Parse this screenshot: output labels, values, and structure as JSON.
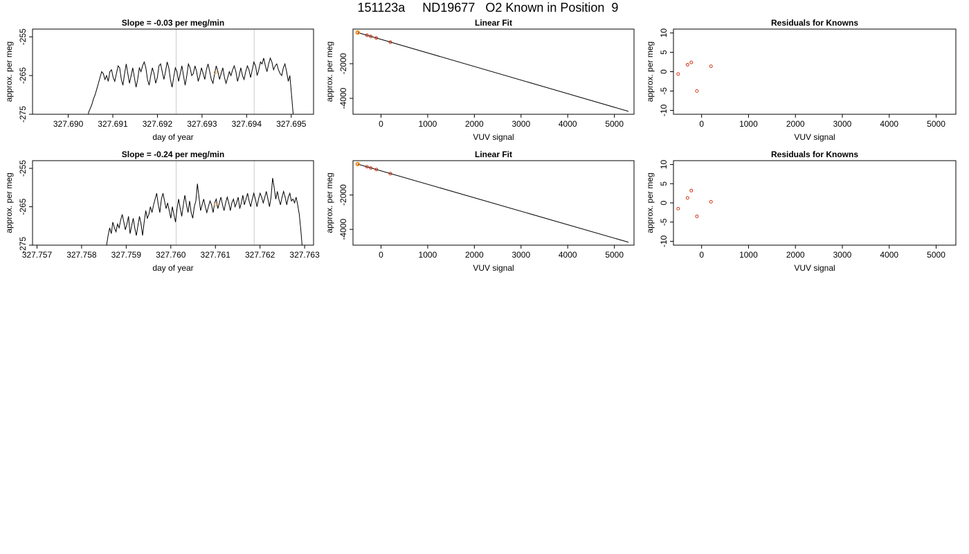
{
  "page": {
    "title": "151123a     ND19677   O2 Known in Position  9"
  },
  "chart_data": [
    {
      "type": "line",
      "title": "Slope =  -0.03  per meg/min",
      "xlabel": "day of year",
      "ylabel": "approx. per meg",
      "xlim": [
        327.6892,
        327.6955
      ],
      "ylim": [
        -275,
        -253
      ],
      "xticks": [
        "327.690",
        "327.691",
        "327.692",
        "327.693",
        "327.694",
        "327.695"
      ],
      "xtick_values": [
        327.69,
        327.691,
        327.692,
        327.693,
        327.694,
        327.695
      ],
      "yticks": [
        "-255",
        "-265",
        "-275"
      ],
      "ytick_values": [
        -255,
        -265,
        -275
      ],
      "vlines": [
        327.69242,
        327.69417
      ],
      "marker": {
        "x": 327.6933,
        "y": -264.2
      },
      "series": [
        {
          "x_start": 327.69042,
          "x_end": 327.69508,
          "values": [
            -279,
            -274.5,
            -273.5,
            -272.5,
            -271,
            -270,
            -268.5,
            -267,
            -265.5,
            -264,
            -264.5,
            -266,
            -265,
            -266.5,
            -264,
            -263.5,
            -265.5,
            -266.5,
            -264.5,
            -262.5,
            -263,
            -266,
            -267.5,
            -264.5,
            -262,
            -264.5,
            -267,
            -265,
            -263,
            -265.5,
            -268,
            -266,
            -263,
            -264,
            -262.5,
            -261.5,
            -263,
            -266,
            -267.5,
            -265,
            -263,
            -264.5,
            -267,
            -265.5,
            -262.5,
            -262,
            -264,
            -266,
            -264,
            -261.5,
            -263,
            -266,
            -268,
            -265.5,
            -263,
            -264,
            -266.5,
            -264.5,
            -262.5,
            -265,
            -267.5,
            -265,
            -262,
            -263,
            -265,
            -264.5,
            -262.5,
            -264,
            -266.5,
            -265,
            -263,
            -264.5,
            -266,
            -263.5,
            -262,
            -264,
            -266,
            -267,
            -264.5,
            -262.5,
            -264,
            -266,
            -264.5,
            -263,
            -265.5,
            -267,
            -265.5,
            -264,
            -265,
            -263.5,
            -262.5,
            -264,
            -266.5,
            -265,
            -263,
            -265,
            -266,
            -264,
            -262.5,
            -263.5,
            -265.5,
            -263.5,
            -261.5,
            -262.5,
            -265,
            -263.5,
            -261.5,
            -262,
            -260.5,
            -262.5,
            -264,
            -262,
            -260.5,
            -261.5,
            -263.5,
            -262.5,
            -262,
            -263.5,
            -264.5,
            -265,
            -263,
            -262,
            -264,
            -266.5,
            -265,
            -270,
            -275,
            -281
          ]
        }
      ]
    },
    {
      "type": "scatter",
      "title": "Linear Fit",
      "xlabel": "VUV signal",
      "ylabel": "approx. per meg",
      "xlim": [
        -600,
        5420
      ],
      "ylim": [
        -4920,
        0
      ],
      "xticks": [
        "0",
        "1000",
        "2000",
        "3000",
        "4000",
        "5000"
      ],
      "xtick_values": [
        0,
        1000,
        2000,
        3000,
        4000,
        5000
      ],
      "yticks": [
        "-2000",
        "-4000"
      ],
      "ytick_values": [
        -2000,
        -4000
      ],
      "fit_line": {
        "x": [
          -500,
          5300
        ],
        "y": [
          -200,
          -4750
        ]
      },
      "points": {
        "x": [
          -500,
          -300,
          -220,
          -100,
          200
        ],
        "y": [
          -200,
          -355,
          -425,
          -515,
          -755
        ]
      },
      "highlight": {
        "x": -500,
        "y": -200
      }
    },
    {
      "type": "scatter",
      "title": "Residuals for Knowns",
      "xlabel": "VUV signal",
      "ylabel": "approx. per meg",
      "xlim": [
        -600,
        5420
      ],
      "ylim": [
        -11,
        11
      ],
      "xticks": [
        "0",
        "1000",
        "2000",
        "3000",
        "4000",
        "5000"
      ],
      "xtick_values": [
        0,
        1000,
        2000,
        3000,
        4000,
        5000
      ],
      "yticks": [
        "10",
        "5",
        "0",
        "-5",
        "-10"
      ],
      "ytick_values": [
        10,
        5,
        0,
        -5,
        -10
      ],
      "points": {
        "x": [
          -500,
          -300,
          -220,
          -100,
          200
        ],
        "y": [
          -0.6,
          1.8,
          2.4,
          -5.0,
          1.4
        ]
      }
    },
    {
      "type": "line",
      "title": "Slope =  -0.24  per meg/min",
      "xlabel": "day of year",
      "ylabel": "approx. per meg",
      "xlim": [
        327.7569,
        327.7632
      ],
      "ylim": [
        -275,
        -253
      ],
      "xticks": [
        "327.757",
        "327.758",
        "327.759",
        "327.760",
        "327.761",
        "327.762",
        "327.763"
      ],
      "xtick_values": [
        327.757,
        327.758,
        327.759,
        327.76,
        327.761,
        327.762,
        327.763
      ],
      "yticks": [
        "-255",
        "-265",
        "-275"
      ],
      "ytick_values": [
        -255,
        -265,
        -275
      ],
      "vlines": [
        327.76012,
        327.76187
      ],
      "marker": {
        "x": 327.761,
        "y": -264.4
      },
      "series": [
        {
          "x_start": 327.75856,
          "x_end": 327.76295,
          "values": [
            -275,
            -272.5,
            -270.5,
            -272,
            -269,
            -270.5,
            -271.5,
            -269.5,
            -270.5,
            -268.5,
            -267,
            -269,
            -271,
            -269.5,
            -267.5,
            -272,
            -270,
            -268,
            -270.5,
            -272.5,
            -270,
            -267.5,
            -269.5,
            -272.5,
            -269,
            -266,
            -268,
            -267,
            -265,
            -266.5,
            -264.5,
            -263,
            -261.5,
            -264.5,
            -266.5,
            -263,
            -261.5,
            -263.5,
            -265.5,
            -264,
            -266,
            -268,
            -265,
            -267,
            -269,
            -265.5,
            -263,
            -265.5,
            -267.5,
            -264.5,
            -262,
            -264.5,
            -266.5,
            -263.5,
            -266.5,
            -268,
            -265,
            -263.5,
            -259,
            -262.5,
            -266,
            -264.5,
            -263,
            -265,
            -266.5,
            -265,
            -263.5,
            -264.5,
            -266.5,
            -264,
            -263,
            -265.5,
            -264,
            -262.5,
            -264.5,
            -266,
            -264,
            -262.5,
            -264,
            -266,
            -264,
            -263,
            -265,
            -264,
            -262.5,
            -265.5,
            -264,
            -262,
            -264.5,
            -263,
            -261.5,
            -263.5,
            -265,
            -263,
            -261.5,
            -263,
            -265,
            -263,
            -261.5,
            -262.5,
            -264,
            -262.5,
            -261,
            -263,
            -265,
            -262.5,
            -257.5,
            -260,
            -263,
            -261,
            -263,
            -264.5,
            -262.5,
            -261,
            -262.5,
            -264.5,
            -262.5,
            -261.5,
            -263.5,
            -263,
            -264,
            -262.5,
            -264.5,
            -267,
            -271,
            -276
          ]
        }
      ]
    },
    {
      "type": "scatter",
      "title": "Linear Fit",
      "xlabel": "VUV signal",
      "ylabel": "approx. per meg",
      "xlim": [
        -600,
        5420
      ],
      "ylim": [
        -4920,
        0
      ],
      "xticks": [
        "0",
        "1000",
        "2000",
        "3000",
        "4000",
        "5000"
      ],
      "xtick_values": [
        0,
        1000,
        2000,
        3000,
        4000,
        5000
      ],
      "yticks": [
        "-2000",
        "-4000"
      ],
      "ytick_values": [
        -2000,
        -4000
      ],
      "fit_line": {
        "x": [
          -500,
          5300
        ],
        "y": [
          -200,
          -4750
        ]
      },
      "points": {
        "x": [
          -500,
          -300,
          -220,
          -100,
          200
        ],
        "y": [
          -200,
          -355,
          -425,
          -515,
          -755
        ]
      },
      "highlight": {
        "x": -500,
        "y": -200
      }
    },
    {
      "type": "scatter",
      "title": "Residuals for Knowns",
      "xlabel": "VUV signal",
      "ylabel": "approx. per meg",
      "xlim": [
        -600,
        5420
      ],
      "ylim": [
        -11,
        11
      ],
      "xticks": [
        "0",
        "1000",
        "2000",
        "3000",
        "4000",
        "5000"
      ],
      "xtick_values": [
        0,
        1000,
        2000,
        3000,
        4000,
        5000
      ],
      "yticks": [
        "10",
        "5",
        "0",
        "-5",
        "-10"
      ],
      "ytick_values": [
        10,
        5,
        0,
        -5,
        -10
      ],
      "points": {
        "x": [
          -500,
          -300,
          -220,
          -100,
          200
        ],
        "y": [
          -1.5,
          1.3,
          3.2,
          -3.5,
          0.3
        ]
      }
    }
  ]
}
